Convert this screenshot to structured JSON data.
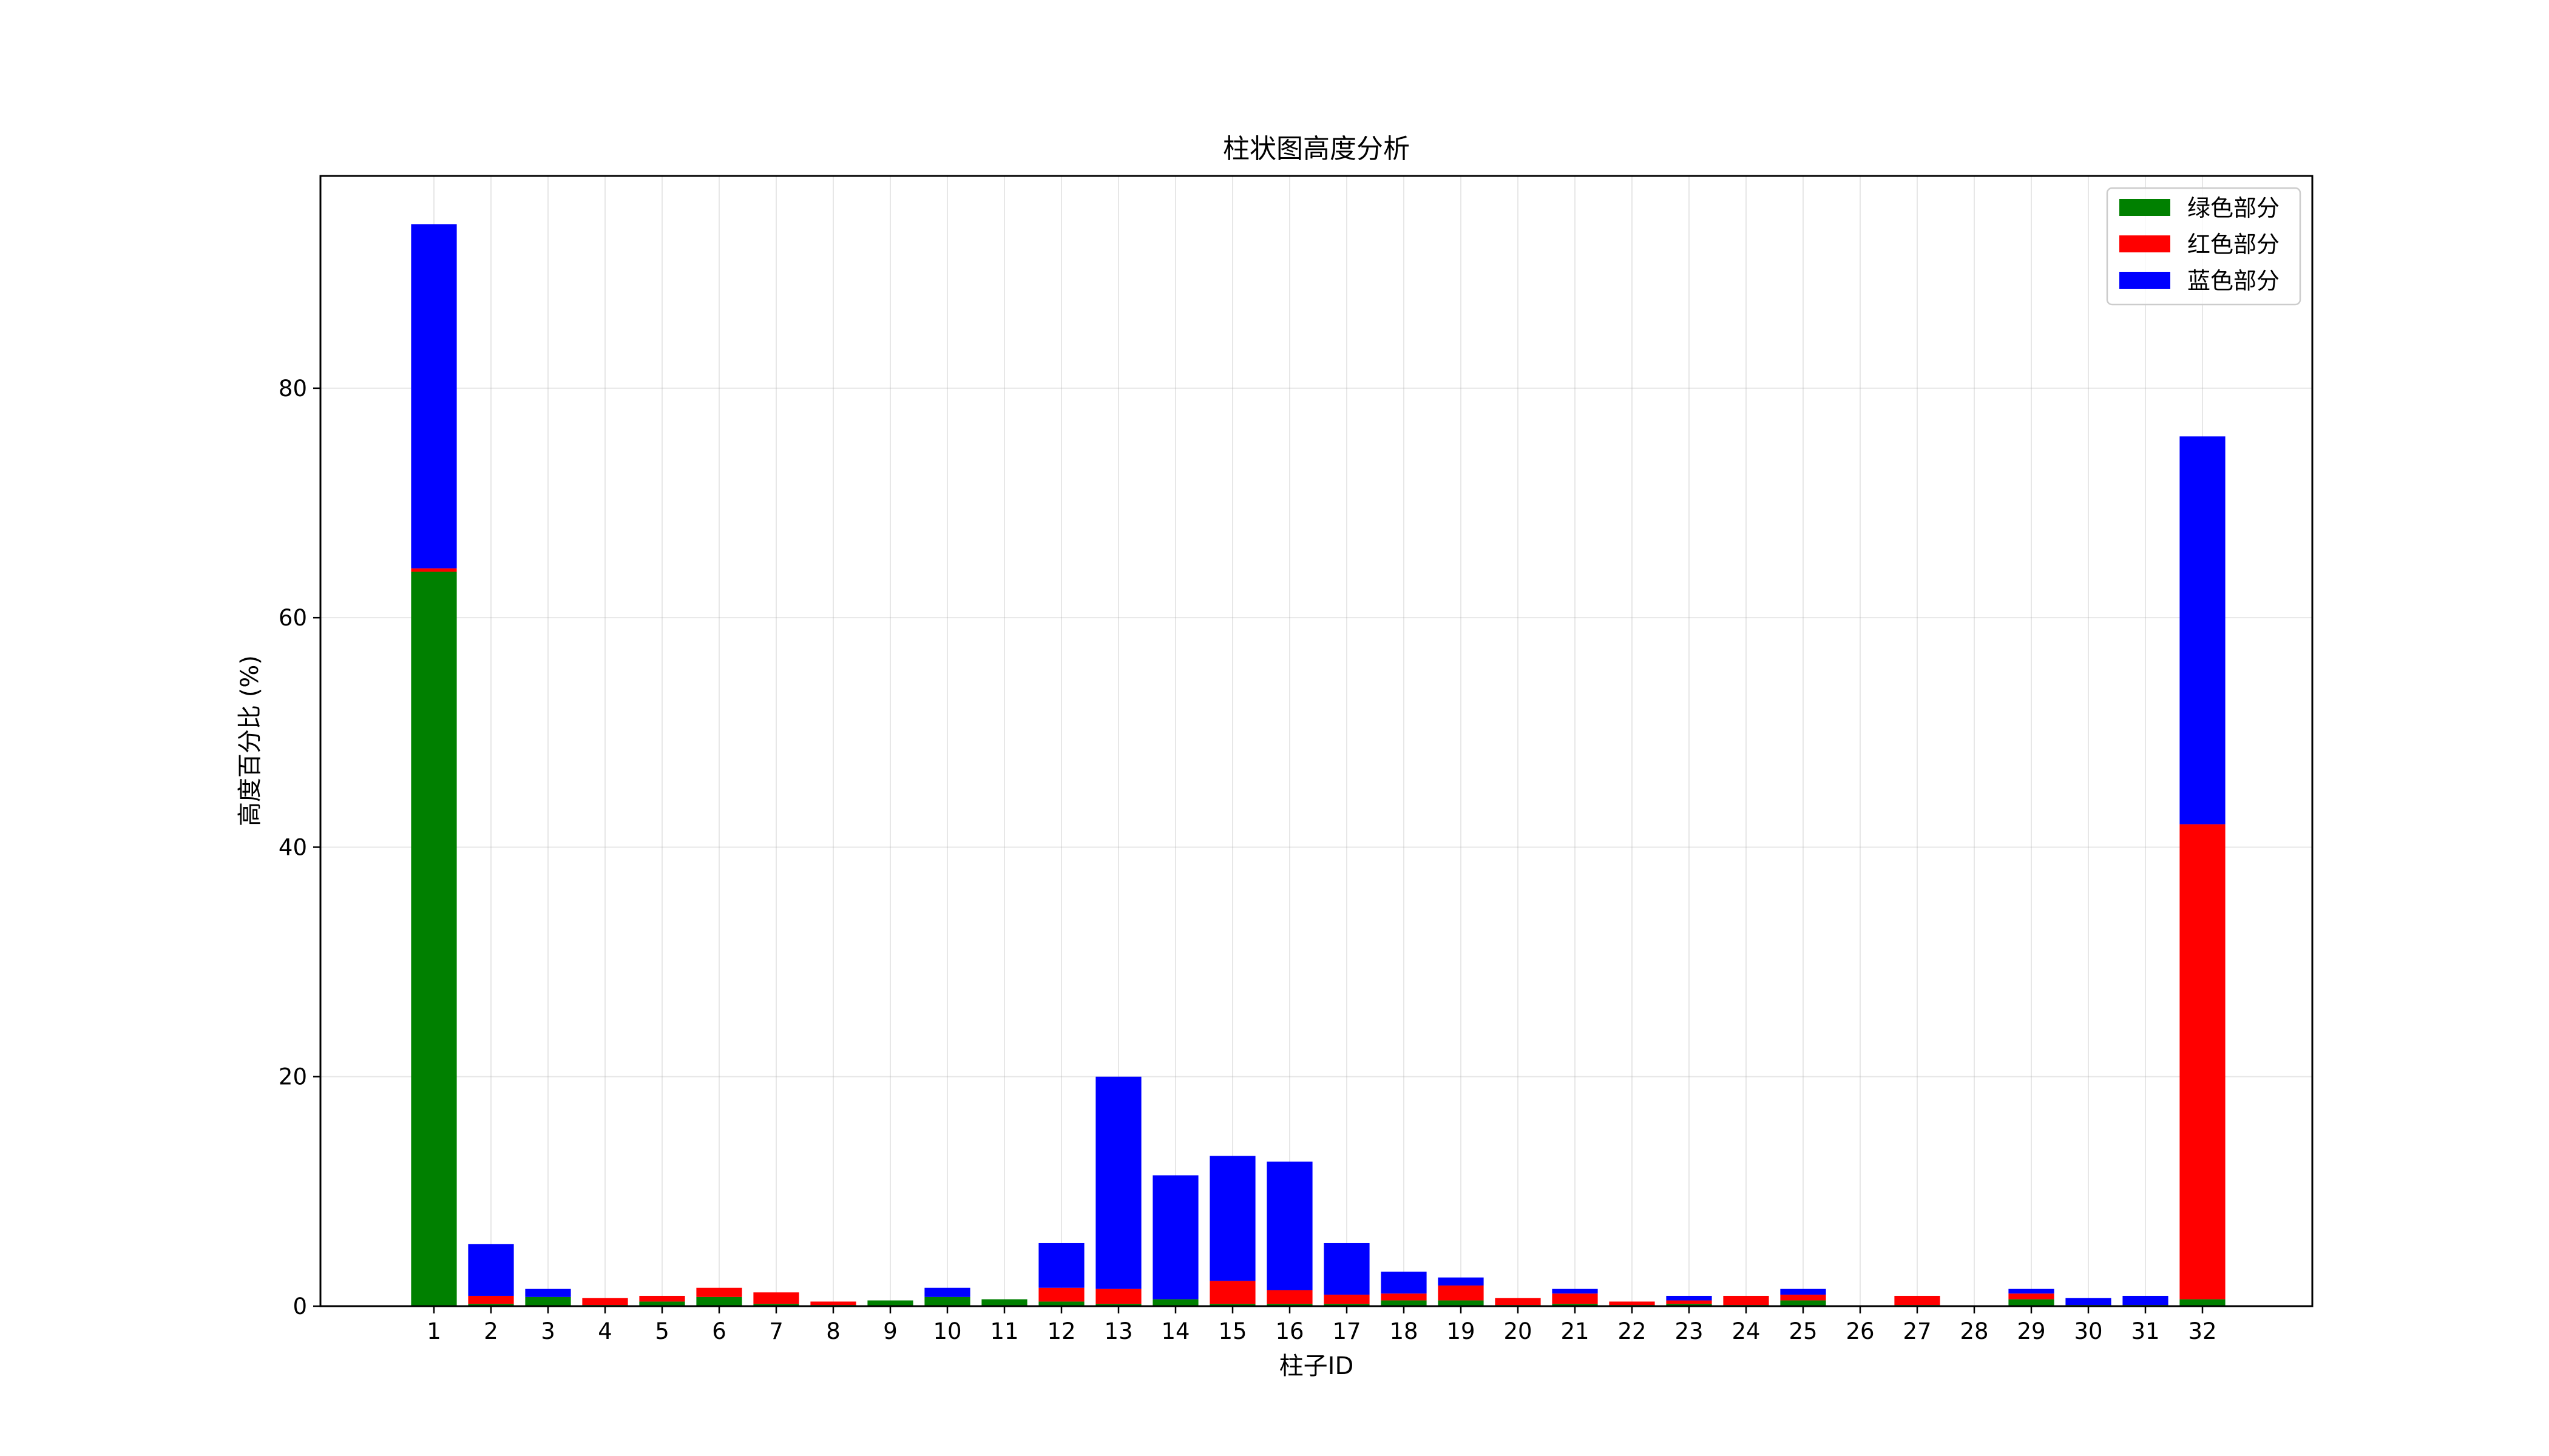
{
  "chart_data": {
    "type": "bar",
    "stacked": true,
    "title": "柱状图高度分析",
    "xlabel": "柱子ID",
    "ylabel": "高度百分比 (%)",
    "ylim": [
      0,
      98.5
    ],
    "yticks": [
      0,
      20,
      40,
      60,
      80
    ],
    "grid": true,
    "legend_position": "top-right",
    "categories": [
      "1",
      "2",
      "3",
      "4",
      "5",
      "6",
      "7",
      "8",
      "9",
      "10",
      "11",
      "12",
      "13",
      "14",
      "15",
      "16",
      "17",
      "18",
      "19",
      "20",
      "21",
      "22",
      "23",
      "24",
      "25",
      "26",
      "27",
      "28",
      "29",
      "30",
      "31",
      "32"
    ],
    "series": [
      {
        "name": "绿色部分",
        "color": "#008000",
        "values": [
          64.0,
          0.2,
          0.8,
          0.1,
          0.4,
          0.8,
          0.2,
          0.1,
          0.5,
          0.8,
          0.6,
          0.4,
          0.2,
          0.6,
          0.2,
          0.2,
          0.2,
          0.5,
          0.5,
          0.1,
          0.2,
          0.1,
          0.2,
          0.1,
          0.5,
          0.0,
          0.1,
          0.0,
          0.6,
          0.1,
          0.1,
          0.6
        ]
      },
      {
        "name": "红色部分",
        "color": "#ff0000",
        "values": [
          0.3,
          0.7,
          0.0,
          0.6,
          0.5,
          0.8,
          1.0,
          0.3,
          0.0,
          0.0,
          0.0,
          1.2,
          1.3,
          0.0,
          2.0,
          1.2,
          0.8,
          0.6,
          1.3,
          0.6,
          0.9,
          0.3,
          0.3,
          0.8,
          0.5,
          0.0,
          0.8,
          0.0,
          0.5,
          0.0,
          0.0,
          41.4
        ]
      },
      {
        "name": "蓝色部分",
        "color": "#0000ff",
        "values": [
          30.0,
          4.5,
          0.7,
          0.0,
          0.0,
          0.0,
          0.0,
          0.0,
          0.0,
          0.8,
          0.0,
          3.9,
          18.5,
          10.8,
          10.9,
          11.2,
          4.5,
          1.9,
          0.7,
          0.0,
          0.4,
          0.0,
          0.4,
          0.0,
          0.5,
          0.0,
          0.0,
          0.0,
          0.4,
          0.6,
          0.8,
          33.8
        ]
      }
    ]
  }
}
